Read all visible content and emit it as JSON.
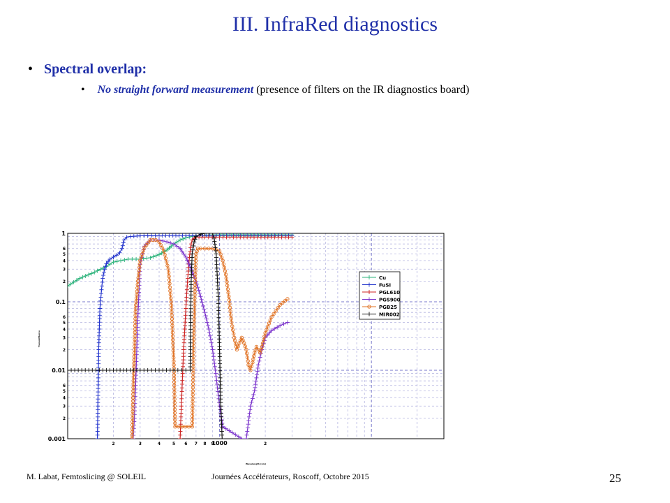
{
  "slide": {
    "title": "III. InfraRed diagnostics",
    "bullet": "Spectral overlap:",
    "sub_bullet_emphasis": "No straight forward measurement",
    "sub_bullet_rest": "(presence of filters on the IR diagnostics board)",
    "footer_left": "M. Labat, Femtoslicing @ SOLEIL",
    "footer_center": "Journées Accélérateurs, Roscoff, Octobre 2015",
    "page_number": "25"
  },
  "chart_data": {
    "type": "line",
    "x_scale": "log",
    "y_scale": "log",
    "xlim": [
      100,
      30000
    ],
    "ylim": [
      0.001,
      1
    ],
    "grid": true,
    "legend_position": "top-right",
    "ylabel": "Transmittance",
    "xlabel": "Wavelength (nm)",
    "y_ticks": [
      {
        "value": 1,
        "label": "1"
      },
      {
        "value": 0.1,
        "label": "0.1"
      },
      {
        "value": 0.01,
        "label": "0.01"
      },
      {
        "value": 0.001,
        "label": "0.001"
      }
    ],
    "y_minor_labels": [
      "2",
      "3",
      "4",
      "5",
      "6"
    ],
    "x_ticks": [
      {
        "value": 200,
        "label": "2"
      },
      {
        "value": 300,
        "label": "3"
      },
      {
        "value": 400,
        "label": "4"
      },
      {
        "value": 500,
        "label": "5"
      },
      {
        "value": 600,
        "label": "6"
      },
      {
        "value": 700,
        "label": "7"
      },
      {
        "value": 800,
        "label": "8"
      },
      {
        "value": 900,
        "label": "9"
      },
      {
        "value": 1000,
        "label": "1000"
      },
      {
        "value": 2000,
        "label": "2"
      }
    ],
    "series": [
      {
        "name": "Cu",
        "color": "#2bb37a",
        "marker": "plus",
        "x": [
          100,
          120,
          150,
          180,
          200,
          250,
          300,
          350,
          400,
          450,
          500,
          550,
          600,
          700,
          900,
          1200,
          2000,
          3000
        ],
        "y": [
          0.17,
          0.22,
          0.27,
          0.33,
          0.38,
          0.42,
          0.42,
          0.44,
          0.49,
          0.57,
          0.7,
          0.8,
          0.86,
          0.93,
          0.95,
          0.95,
          0.95,
          0.95
        ]
      },
      {
        "name": "FuSI",
        "color": "#2233cc",
        "marker": "plus",
        "x": [
          157,
          158,
          160,
          163,
          167,
          170,
          175,
          180,
          190,
          200,
          210,
          220,
          228,
          235,
          245,
          260,
          300,
          400,
          600,
          1000,
          3000
        ],
        "y": [
          0.001,
          0.003,
          0.02,
          0.08,
          0.15,
          0.22,
          0.3,
          0.36,
          0.42,
          0.45,
          0.48,
          0.52,
          0.6,
          0.8,
          0.88,
          0.9,
          0.92,
          0.93,
          0.93,
          0.93,
          0.93
        ]
      },
      {
        "name": "PGL610",
        "color": "#cc2222",
        "marker": "plus",
        "x": [
          550,
          560,
          570,
          580,
          590,
          600,
          610,
          620,
          630,
          640,
          650,
          660,
          680,
          700,
          800,
          1000,
          3000
        ],
        "y": [
          0.001,
          0.003,
          0.008,
          0.02,
          0.04,
          0.08,
          0.15,
          0.25,
          0.4,
          0.55,
          0.7,
          0.8,
          0.85,
          0.88,
          0.88,
          0.88,
          0.88
        ]
      },
      {
        "name": "PGS900",
        "color": "#7a33cc",
        "marker": "plus",
        "x": [
          270,
          275,
          280,
          290,
          300,
          320,
          350,
          380,
          400,
          450,
          500,
          550,
          600,
          650,
          700,
          750,
          800,
          850,
          900,
          950,
          1000,
          1050,
          1400,
          1500,
          1600,
          1700,
          1800,
          1900,
          2000,
          2200,
          2500,
          2800
        ],
        "y": [
          0.001,
          0.002,
          0.006,
          0.06,
          0.35,
          0.65,
          0.8,
          0.8,
          0.8,
          0.75,
          0.7,
          0.6,
          0.45,
          0.3,
          0.2,
          0.12,
          0.07,
          0.04,
          0.02,
          0.008,
          0.003,
          0.0015,
          0.001,
          0.001,
          0.003,
          0.005,
          0.012,
          0.02,
          0.03,
          0.038,
          0.045,
          0.05
        ]
      },
      {
        "name": "PGB25",
        "color": "#e07020",
        "marker": "circle",
        "x": [
          265,
          270,
          275,
          280,
          290,
          300,
          320,
          350,
          380,
          400,
          430,
          460,
          480,
          490,
          500,
          510,
          660,
          670,
          680,
          690,
          700,
          720,
          750,
          800,
          900,
          1000,
          1050,
          1100,
          1150,
          1200,
          1250,
          1300,
          1350,
          1400,
          1450,
          1500,
          1550,
          1600,
          1650,
          1700,
          1750,
          1800,
          1850,
          1900,
          2000,
          2200,
          2500,
          2800
        ],
        "y": [
          0.001,
          0.005,
          0.02,
          0.08,
          0.2,
          0.4,
          0.62,
          0.8,
          0.8,
          0.75,
          0.55,
          0.3,
          0.1,
          0.04,
          0.012,
          0.0015,
          0.0015,
          0.008,
          0.05,
          0.2,
          0.5,
          0.6,
          0.6,
          0.6,
          0.6,
          0.55,
          0.4,
          0.25,
          0.12,
          0.05,
          0.03,
          0.02,
          0.025,
          0.03,
          0.025,
          0.02,
          0.012,
          0.01,
          0.013,
          0.018,
          0.022,
          0.02,
          0.018,
          0.022,
          0.035,
          0.06,
          0.09,
          0.11
        ]
      },
      {
        "name": "MIR002",
        "color": "#111111",
        "marker": "plus",
        "x": [
          100,
          200,
          300,
          400,
          500,
          600,
          640,
          645,
          650,
          660,
          680,
          700,
          750,
          800,
          850,
          900,
          920,
          950,
          980,
          1000,
          1020,
          1040
        ],
        "y": [
          0.01,
          0.01,
          0.01,
          0.01,
          0.01,
          0.01,
          0.01,
          0.05,
          0.2,
          0.5,
          0.75,
          0.9,
          0.97,
          1.0,
          1.0,
          1.0,
          0.85,
          0.5,
          0.12,
          0.02,
          0.003,
          0.001
        ]
      }
    ]
  }
}
